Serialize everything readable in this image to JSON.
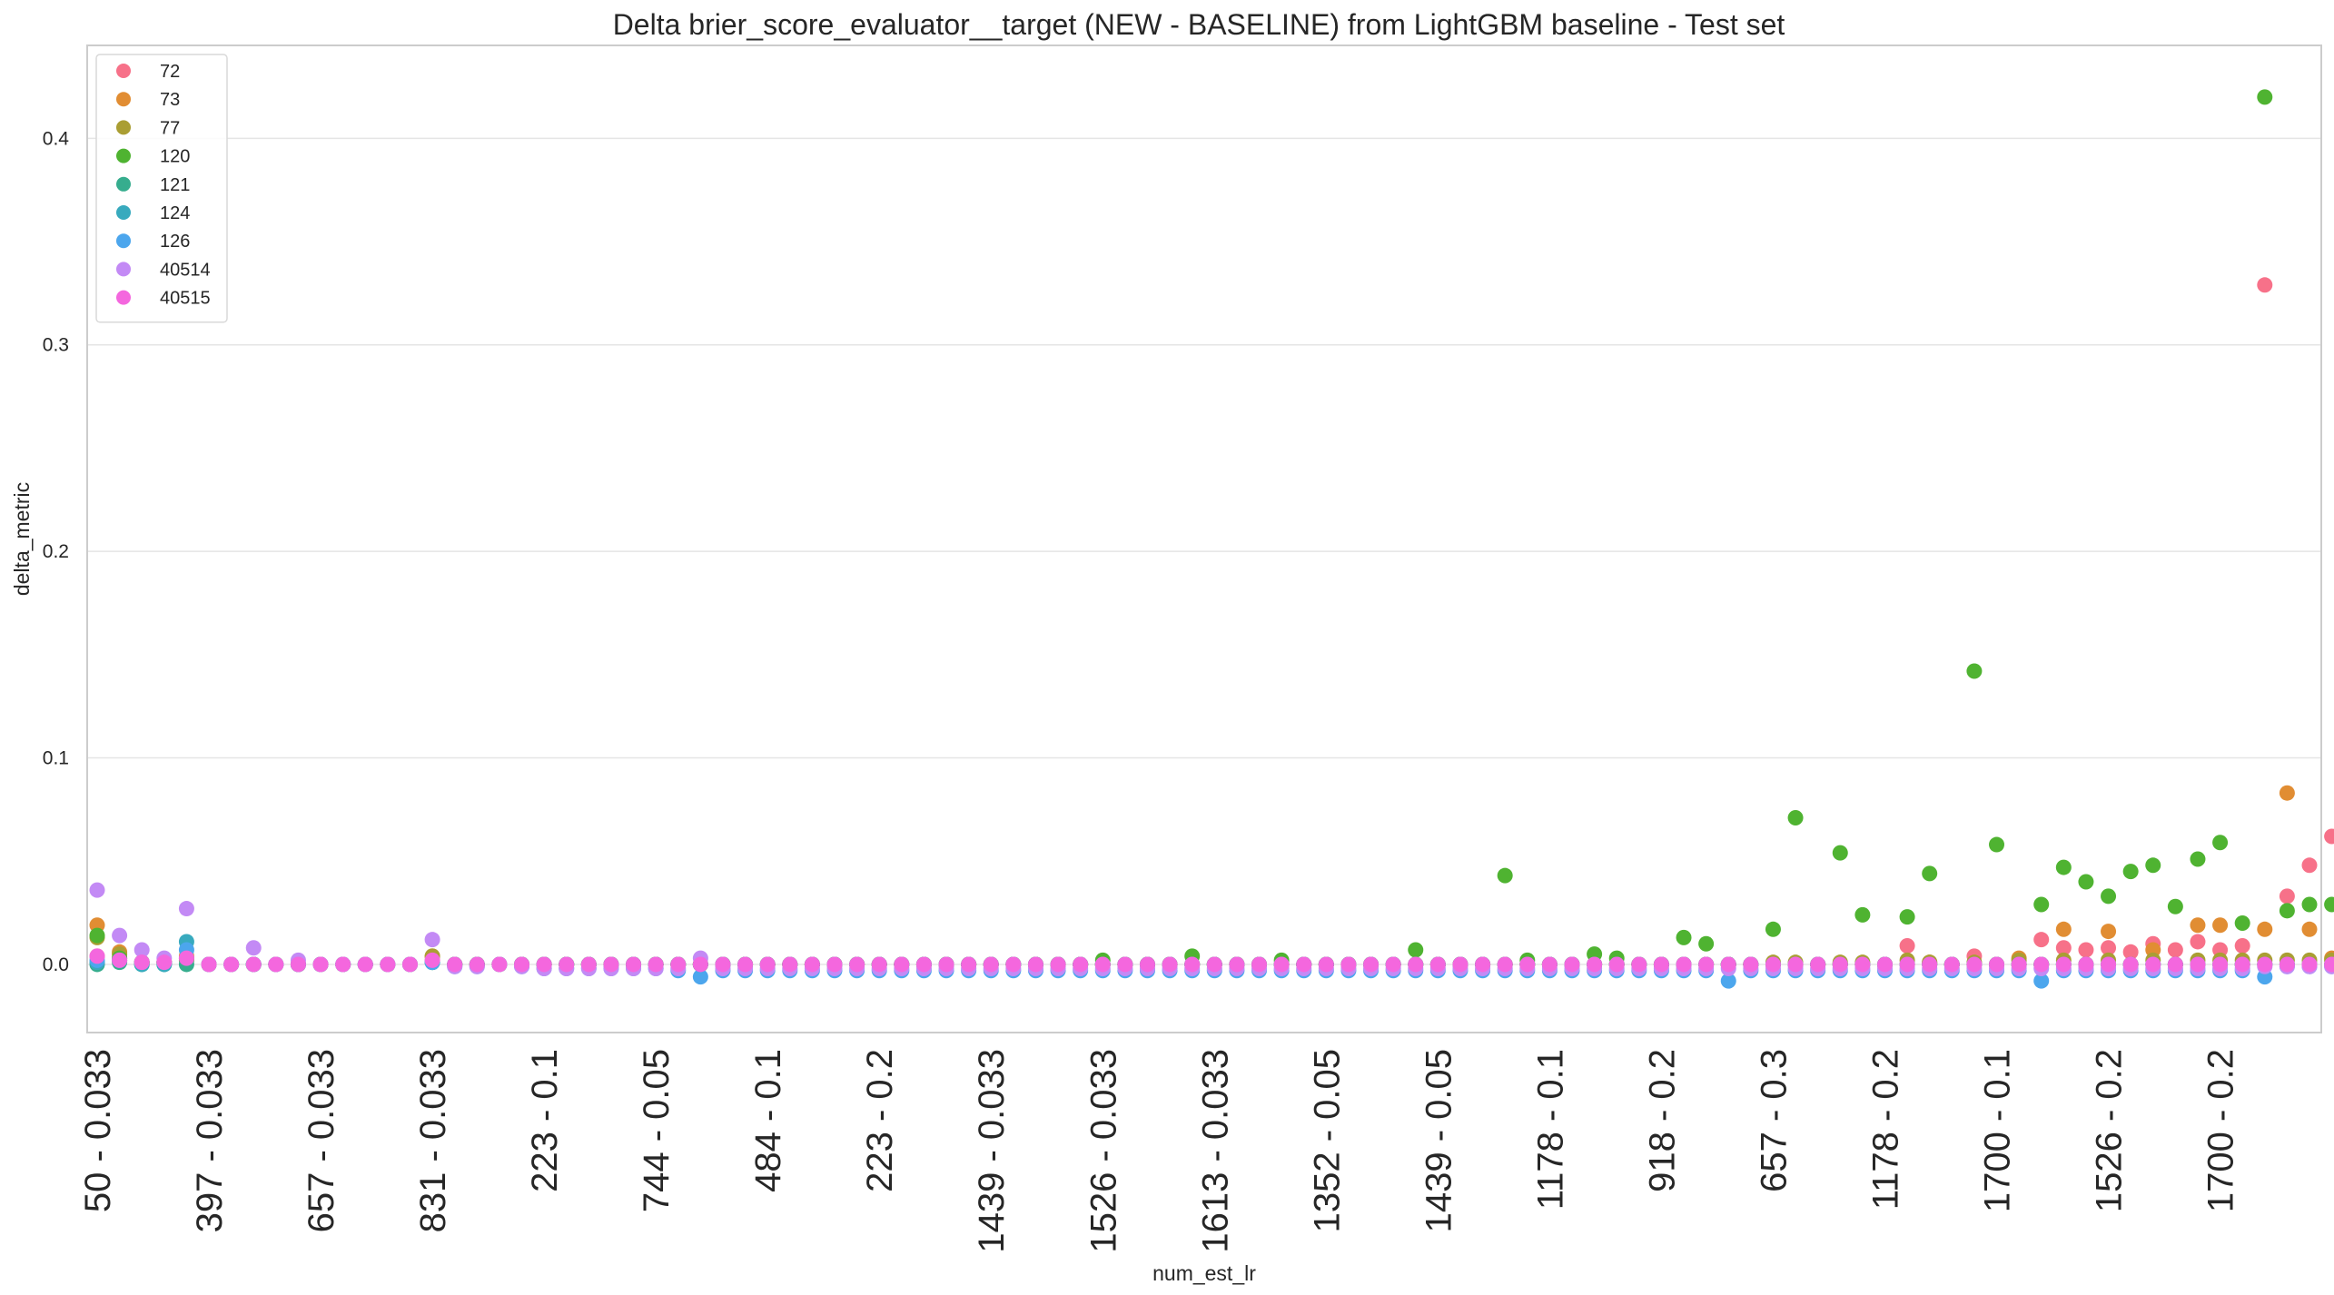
{
  "chart_data": {
    "type": "scatter",
    "title": "Delta brier_score_evaluator__target (NEW - BASELINE) from LightGBM baseline - Test set",
    "xlabel": "num_est_lr",
    "ylabel": "delta_metric",
    "ylim": [
      -0.033,
      0.445
    ],
    "yticks": [
      0.0,
      0.1,
      0.2,
      0.3,
      0.4
    ],
    "ytick_labels": [
      "0.0",
      "0.1",
      "0.2",
      "0.3",
      "0.4"
    ],
    "grid": "horizontal",
    "legend_position": "top-left",
    "n_categories": 100,
    "xticks": [
      {
        "index": 0,
        "label": "50 - 0.033"
      },
      {
        "index": 5,
        "label": "397 - 0.033"
      },
      {
        "index": 10,
        "label": "657 - 0.033"
      },
      {
        "index": 15,
        "label": "831 - 0.033"
      },
      {
        "index": 20,
        "label": "223 - 0.1"
      },
      {
        "index": 25,
        "label": "744 - 0.05"
      },
      {
        "index": 30,
        "label": "484 - 0.1"
      },
      {
        "index": 35,
        "label": "223 - 0.2"
      },
      {
        "index": 40,
        "label": "1439 - 0.033"
      },
      {
        "index": 45,
        "label": "1526 - 0.033"
      },
      {
        "index": 50,
        "label": "1613 - 0.033"
      },
      {
        "index": 55,
        "label": "1352 - 0.05"
      },
      {
        "index": 60,
        "label": "1439 - 0.05"
      },
      {
        "index": 65,
        "label": "1178 - 0.1"
      },
      {
        "index": 70,
        "label": "918 - 0.2"
      },
      {
        "index": 75,
        "label": "657 - 0.3"
      },
      {
        "index": 80,
        "label": "1178 - 0.2"
      },
      {
        "index": 85,
        "label": "1700 - 0.1"
      },
      {
        "index": 90,
        "label": "1526 - 0.2"
      },
      {
        "index": 95,
        "label": "1700 - 0.2"
      }
    ],
    "series": [
      {
        "name": "72",
        "color": "#f77189",
        "values": [
          0.004,
          0.003,
          0.001,
          0.001,
          0.003,
          0.0,
          0.0,
          0.0,
          0.0,
          0.0,
          0.0,
          0.0,
          0.0,
          0.0,
          0.0,
          0.002,
          0.0,
          0.0,
          0.0,
          0.0,
          0.0,
          0.0,
          0.0,
          0.0,
          0.0,
          0.0,
          0.0,
          0.0,
          0.0,
          0.0,
          0.0,
          0.0,
          0.0,
          0.0,
          0.0,
          0.0,
          0.0,
          0.0,
          0.0,
          0.0,
          0.0,
          0.0,
          0.0,
          0.0,
          0.0,
          0.0,
          0.0,
          0.0,
          0.0,
          0.0,
          0.0,
          0.0,
          0.0,
          0.0,
          0.0,
          0.0,
          0.0,
          0.0,
          0.0,
          0.0,
          0.0,
          0.0,
          0.0,
          0.0,
          0.0,
          0.0,
          0.0,
          0.0,
          0.0,
          0.0,
          0.0,
          0.0,
          0.0,
          0.0,
          0.0,
          0.0,
          0.0,
          0.0,
          0.0,
          0.0,
          0.0,
          0.009,
          0.0,
          0.0,
          0.004,
          0.0,
          0.0,
          0.012,
          0.008,
          0.007,
          0.008,
          0.006,
          0.01,
          0.007,
          0.011,
          0.007,
          0.009,
          0.329,
          0.033,
          0.048,
          0.062
        ]
      },
      {
        "name": "73",
        "color": "#e18d33",
        "values": [
          0.019,
          0.006,
          0.001,
          0.001,
          0.004,
          0.0,
          0.0,
          0.0,
          0.0,
          0.0,
          0.0,
          0.0,
          0.0,
          0.0,
          0.0,
          0.004,
          0.0,
          0.0,
          0.0,
          0.0,
          0.0,
          0.0,
          0.0,
          0.0,
          0.0,
          0.0,
          0.0,
          0.0,
          0.0,
          0.0,
          0.0,
          0.0,
          0.0,
          0.0,
          0.0,
          0.0,
          0.0,
          0.0,
          0.0,
          0.0,
          0.0,
          0.0,
          0.0,
          0.0,
          0.0,
          0.0,
          0.0,
          0.0,
          0.0,
          0.0,
          0.0,
          0.0,
          0.0,
          0.0,
          0.0,
          0.0,
          0.0,
          0.0,
          0.0,
          0.0,
          0.0,
          0.0,
          0.0,
          0.0,
          0.0,
          0.0,
          0.0,
          0.0,
          0.0,
          0.0,
          0.0,
          0.0,
          0.0,
          0.0,
          0.0,
          0.0,
          0.0,
          0.0,
          0.0,
          0.0,
          0.0,
          0.0,
          0.001,
          0.0,
          0.0,
          0.0,
          0.003,
          0.0,
          0.017,
          0.0,
          0.016,
          0.0,
          0.007,
          0.0,
          0.019,
          0.019,
          0.0,
          0.017,
          0.083,
          0.017,
          0.003
        ]
      },
      {
        "name": "77",
        "color": "#aa9e33",
        "values": [
          0.013,
          0.005,
          0.001,
          0.001,
          0.003,
          0.0,
          0.0,
          0.0,
          0.0,
          0.0,
          0.0,
          0.0,
          0.0,
          0.0,
          0.0,
          0.004,
          0.0,
          0.0,
          0.0,
          0.0,
          0.0,
          0.0,
          0.0,
          0.0,
          0.0,
          0.0,
          0.0,
          0.0,
          0.0,
          0.0,
          0.0,
          0.0,
          0.0,
          0.0,
          0.0,
          0.0,
          0.0,
          0.0,
          0.0,
          0.0,
          0.0,
          0.0,
          0.0,
          0.0,
          0.0,
          0.0,
          0.0,
          0.0,
          0.0,
          0.0,
          0.0,
          0.0,
          0.0,
          0.0,
          0.0,
          0.0,
          0.0,
          0.0,
          0.0,
          0.0,
          0.0,
          0.0,
          0.0,
          0.0,
          0.0,
          0.0,
          0.0,
          0.0,
          0.0,
          0.0,
          0.0,
          0.0,
          0.0,
          0.0,
          0.0,
          0.001,
          0.001,
          0.0,
          0.001,
          0.001,
          0.0,
          0.002,
          0.001,
          0.0,
          0.001,
          0.0,
          0.002,
          0.0,
          0.002,
          0.0,
          0.002,
          0.0,
          0.002,
          0.0,
          0.002,
          0.002,
          0.002,
          0.002,
          0.002,
          0.002,
          0.002
        ]
      },
      {
        "name": "120",
        "color": "#4fb331",
        "values": [
          0.014,
          0.003,
          0.001,
          0.001,
          0.002,
          0.0,
          0.0,
          0.0,
          0.0,
          0.0,
          0.0,
          0.0,
          0.0,
          0.0,
          0.0,
          0.001,
          0.0,
          0.0,
          0.0,
          0.0,
          0.0,
          0.0,
          0.0,
          0.0,
          0.0,
          0.0,
          0.0,
          0.0,
          0.0,
          0.0,
          0.0,
          0.0,
          0.0,
          0.0,
          0.0,
          0.0,
          0.0,
          0.0,
          0.0,
          0.0,
          0.0,
          0.0,
          0.0,
          0.0,
          0.0,
          0.002,
          0.0,
          0.0,
          0.0,
          0.004,
          0.0,
          0.0,
          0.0,
          0.002,
          0.0,
          0.0,
          0.0,
          0.0,
          0.0,
          0.007,
          0.0,
          0.0,
          0.0,
          0.043,
          0.002,
          0.0,
          0.0,
          0.005,
          0.003,
          0.0,
          0.0,
          0.013,
          0.01,
          0.0,
          0.0,
          0.017,
          0.071,
          0.0,
          0.054,
          0.024,
          0.0,
          0.023,
          0.044,
          0.0,
          0.142,
          0.058,
          0.0,
          0.029,
          0.047,
          0.04,
          0.033,
          0.045,
          0.048,
          0.028,
          0.051,
          0.059,
          0.02,
          0.42,
          0.026,
          0.029,
          0.029
        ]
      },
      {
        "name": "121",
        "color": "#36ad8e",
        "values": [
          0.0,
          0.001,
          0.0,
          0.0,
          0.0,
          0.0,
          0.0,
          0.0,
          0.0,
          0.0,
          0.0,
          0.0,
          0.0,
          0.0,
          0.0,
          0.001,
          0.0,
          0.0,
          0.0,
          0.0,
          0.0,
          0.0,
          0.0,
          0.0,
          0.0,
          0.0,
          0.0,
          0.0,
          0.0,
          0.0,
          0.0,
          0.0,
          0.0,
          0.0,
          0.0,
          0.0,
          0.0,
          0.0,
          0.0,
          0.0,
          0.0,
          0.0,
          0.0,
          0.0,
          0.0,
          0.0,
          0.0,
          0.0,
          0.0,
          0.0,
          0.0,
          0.0,
          0.0,
          0.0,
          0.0,
          0.0,
          0.0,
          0.0,
          0.0,
          0.0,
          0.0,
          0.0,
          0.0,
          0.0,
          0.0,
          0.0,
          0.0,
          0.0,
          0.0,
          0.0,
          0.0,
          0.0,
          0.0,
          0.0,
          0.0,
          0.0,
          0.0,
          0.0,
          0.0,
          0.0,
          0.0,
          0.0,
          0.0,
          0.0,
          0.0,
          0.0,
          0.0,
          0.0,
          0.0,
          0.0,
          0.0,
          0.0,
          0.0,
          0.0,
          0.0,
          0.0,
          0.0,
          0.0,
          0.0,
          0.0,
          0.0
        ]
      },
      {
        "name": "124",
        "color": "#38aabe",
        "values": [
          0.001,
          0.002,
          0.0,
          0.0,
          0.011,
          0.0,
          0.0,
          0.0,
          0.0,
          0.0,
          0.0,
          0.0,
          0.0,
          0.0,
          0.0,
          0.001,
          0.0,
          0.0,
          0.0,
          0.0,
          0.0,
          0.0,
          0.0,
          0.0,
          0.0,
          0.0,
          0.0,
          0.0,
          0.0,
          0.0,
          0.0,
          0.0,
          0.0,
          0.0,
          0.0,
          0.0,
          0.0,
          0.0,
          0.0,
          0.0,
          0.0,
          0.0,
          0.0,
          0.0,
          0.0,
          0.0,
          0.0,
          0.0,
          0.0,
          0.0,
          0.0,
          0.0,
          0.0,
          0.0,
          0.0,
          0.0,
          0.0,
          0.0,
          0.0,
          0.0,
          0.0,
          0.0,
          0.0,
          0.0,
          0.0,
          0.0,
          0.0,
          0.0,
          0.0,
          0.0,
          0.0,
          0.0,
          0.0,
          0.0,
          0.0,
          0.0,
          0.0,
          0.0,
          0.0,
          0.0,
          0.0,
          0.0,
          0.0,
          0.0,
          0.0,
          0.0,
          0.0,
          0.0,
          0.0,
          0.0,
          0.0,
          0.0,
          0.0,
          0.0,
          0.0,
          0.0,
          0.0,
          0.0,
          0.0,
          0.0,
          0.0
        ]
      },
      {
        "name": "126",
        "color": "#4ca6ed",
        "values": [
          0.002,
          0.002,
          0.001,
          0.001,
          0.007,
          0.0,
          0.0,
          0.0,
          0.0,
          0.0,
          0.0,
          0.0,
          0.0,
          0.0,
          0.0,
          0.001,
          -0.001,
          -0.001,
          0.0,
          -0.001,
          -0.002,
          -0.002,
          -0.002,
          -0.002,
          -0.002,
          -0.002,
          -0.003,
          -0.006,
          -0.003,
          -0.003,
          -0.003,
          -0.003,
          -0.003,
          -0.003,
          -0.003,
          -0.003,
          -0.003,
          -0.003,
          -0.003,
          -0.003,
          -0.003,
          -0.003,
          -0.003,
          -0.003,
          -0.003,
          -0.003,
          -0.003,
          -0.003,
          -0.003,
          -0.003,
          -0.003,
          -0.003,
          -0.003,
          -0.003,
          -0.003,
          -0.003,
          -0.003,
          -0.003,
          -0.003,
          -0.003,
          -0.003,
          -0.003,
          -0.003,
          -0.003,
          -0.003,
          -0.003,
          -0.003,
          -0.003,
          -0.003,
          -0.003,
          -0.003,
          -0.003,
          -0.003,
          -0.008,
          -0.003,
          -0.003,
          -0.003,
          -0.003,
          -0.003,
          -0.003,
          -0.003,
          -0.003,
          -0.003,
          -0.003,
          -0.003,
          -0.003,
          -0.003,
          -0.008,
          -0.003,
          -0.003,
          -0.003,
          -0.003,
          -0.003,
          -0.003,
          -0.003,
          -0.003,
          -0.003,
          -0.006,
          -0.001,
          -0.001,
          -0.001
        ]
      },
      {
        "name": "40514",
        "color": "#c38af5",
        "values": [
          0.036,
          0.014,
          0.007,
          0.003,
          0.027,
          0.0,
          0.0,
          0.008,
          0.0,
          0.002,
          0.0,
          0.0,
          0.0,
          0.0,
          0.0,
          0.012,
          -0.001,
          -0.001,
          0.0,
          -0.001,
          -0.002,
          -0.002,
          -0.002,
          -0.002,
          -0.002,
          -0.002,
          -0.002,
          0.003,
          -0.002,
          -0.002,
          -0.002,
          -0.002,
          -0.002,
          -0.002,
          -0.002,
          -0.002,
          -0.002,
          -0.002,
          -0.002,
          -0.002,
          -0.002,
          -0.002,
          -0.002,
          -0.002,
          -0.002,
          -0.002,
          -0.002,
          -0.002,
          -0.002,
          -0.002,
          -0.002,
          -0.002,
          -0.002,
          -0.002,
          -0.002,
          -0.002,
          -0.002,
          -0.002,
          -0.002,
          -0.002,
          -0.002,
          -0.002,
          -0.002,
          -0.002,
          -0.002,
          -0.002,
          -0.002,
          -0.002,
          -0.002,
          -0.002,
          -0.002,
          -0.002,
          -0.002,
          -0.002,
          -0.002,
          -0.002,
          -0.002,
          -0.002,
          -0.002,
          -0.002,
          -0.002,
          -0.002,
          -0.002,
          -0.002,
          -0.002,
          -0.002,
          -0.002,
          -0.002,
          -0.002,
          -0.002,
          -0.002,
          -0.002,
          -0.002,
          -0.002,
          -0.002,
          -0.002,
          -0.002,
          -0.001,
          -0.001,
          -0.001,
          -0.001
        ]
      },
      {
        "name": "40515",
        "color": "#f467de",
        "values": [
          0.004,
          0.002,
          0.001,
          0.001,
          0.003,
          0.0,
          0.0,
          0.0,
          0.0,
          0.0,
          0.0,
          0.0,
          0.0,
          0.0,
          0.0,
          0.002,
          0.0,
          0.0,
          0.0,
          0.0,
          0.0,
          0.0,
          0.0,
          0.0,
          0.0,
          0.0,
          0.0,
          0.0,
          0.0,
          0.0,
          0.0,
          0.0,
          0.0,
          0.0,
          0.0,
          0.0,
          0.0,
          0.0,
          0.0,
          0.0,
          0.0,
          0.0,
          0.0,
          0.0,
          0.0,
          0.0,
          0.0,
          0.0,
          0.0,
          0.0,
          0.0,
          0.0,
          0.0,
          0.0,
          0.0,
          0.0,
          0.0,
          0.0,
          0.0,
          0.0,
          0.0,
          0.0,
          0.0,
          0.0,
          0.0,
          0.0,
          0.0,
          0.0,
          0.0,
          0.0,
          0.0,
          0.0,
          0.0,
          0.0,
          0.0,
          0.0,
          0.0,
          0.0,
          0.0,
          0.0,
          0.0,
          0.0,
          0.0,
          0.0,
          0.0,
          0.0,
          0.0,
          0.0,
          0.0,
          0.0,
          0.0,
          0.0,
          0.0,
          0.0,
          0.0,
          0.0,
          0.0,
          0.0,
          0.0,
          0.0,
          0.0
        ]
      }
    ]
  }
}
